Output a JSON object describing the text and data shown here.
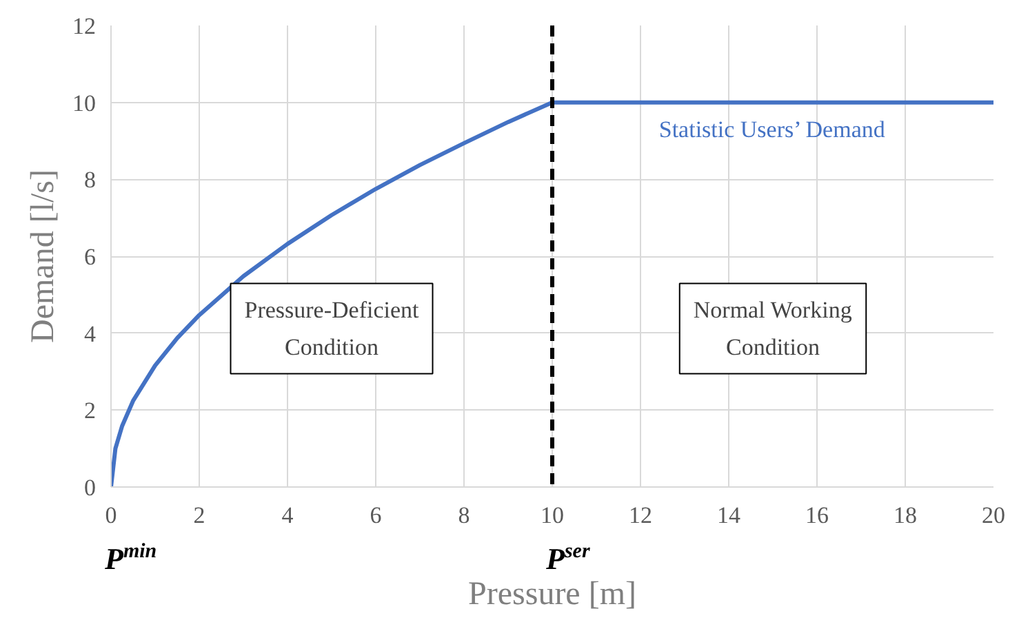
{
  "chart_data": {
    "type": "line",
    "xlabel": "Pressure [m]",
    "ylabel": "Demand [l/s]",
    "x": [
      0,
      0.1,
      0.25,
      0.5,
      1,
      1.5,
      2,
      3,
      4,
      5,
      6,
      7,
      8,
      9,
      10,
      20
    ],
    "series": [
      {
        "name": "Statistic Users’ Demand",
        "color": "#4472c4",
        "values": [
          0,
          1.0,
          1.58,
          2.24,
          3.16,
          3.87,
          4.47,
          5.48,
          6.32,
          7.07,
          7.75,
          8.37,
          8.94,
          9.49,
          10,
          10
        ]
      }
    ],
    "xlim": [
      0,
      20
    ],
    "xticks": [
      0,
      2,
      4,
      6,
      8,
      10,
      12,
      14,
      16,
      18,
      20
    ],
    "ylim": [
      0,
      12
    ],
    "yticks": [
      0,
      2,
      4,
      6,
      8,
      10,
      12
    ],
    "grid": true,
    "marker": "none",
    "line_style": "solid",
    "ref_lines": [
      {
        "axis": "x",
        "value": 10,
        "label": "P$^{ser}$",
        "color": "#000000",
        "line_style": "dashed"
      }
    ],
    "annotations": [
      {
        "text": "P$^{min}$",
        "x": 0,
        "y": 0
      },
      "Pressure-Deficient\nCondition",
      "Normal Working\nCondition"
    ]
  }
}
